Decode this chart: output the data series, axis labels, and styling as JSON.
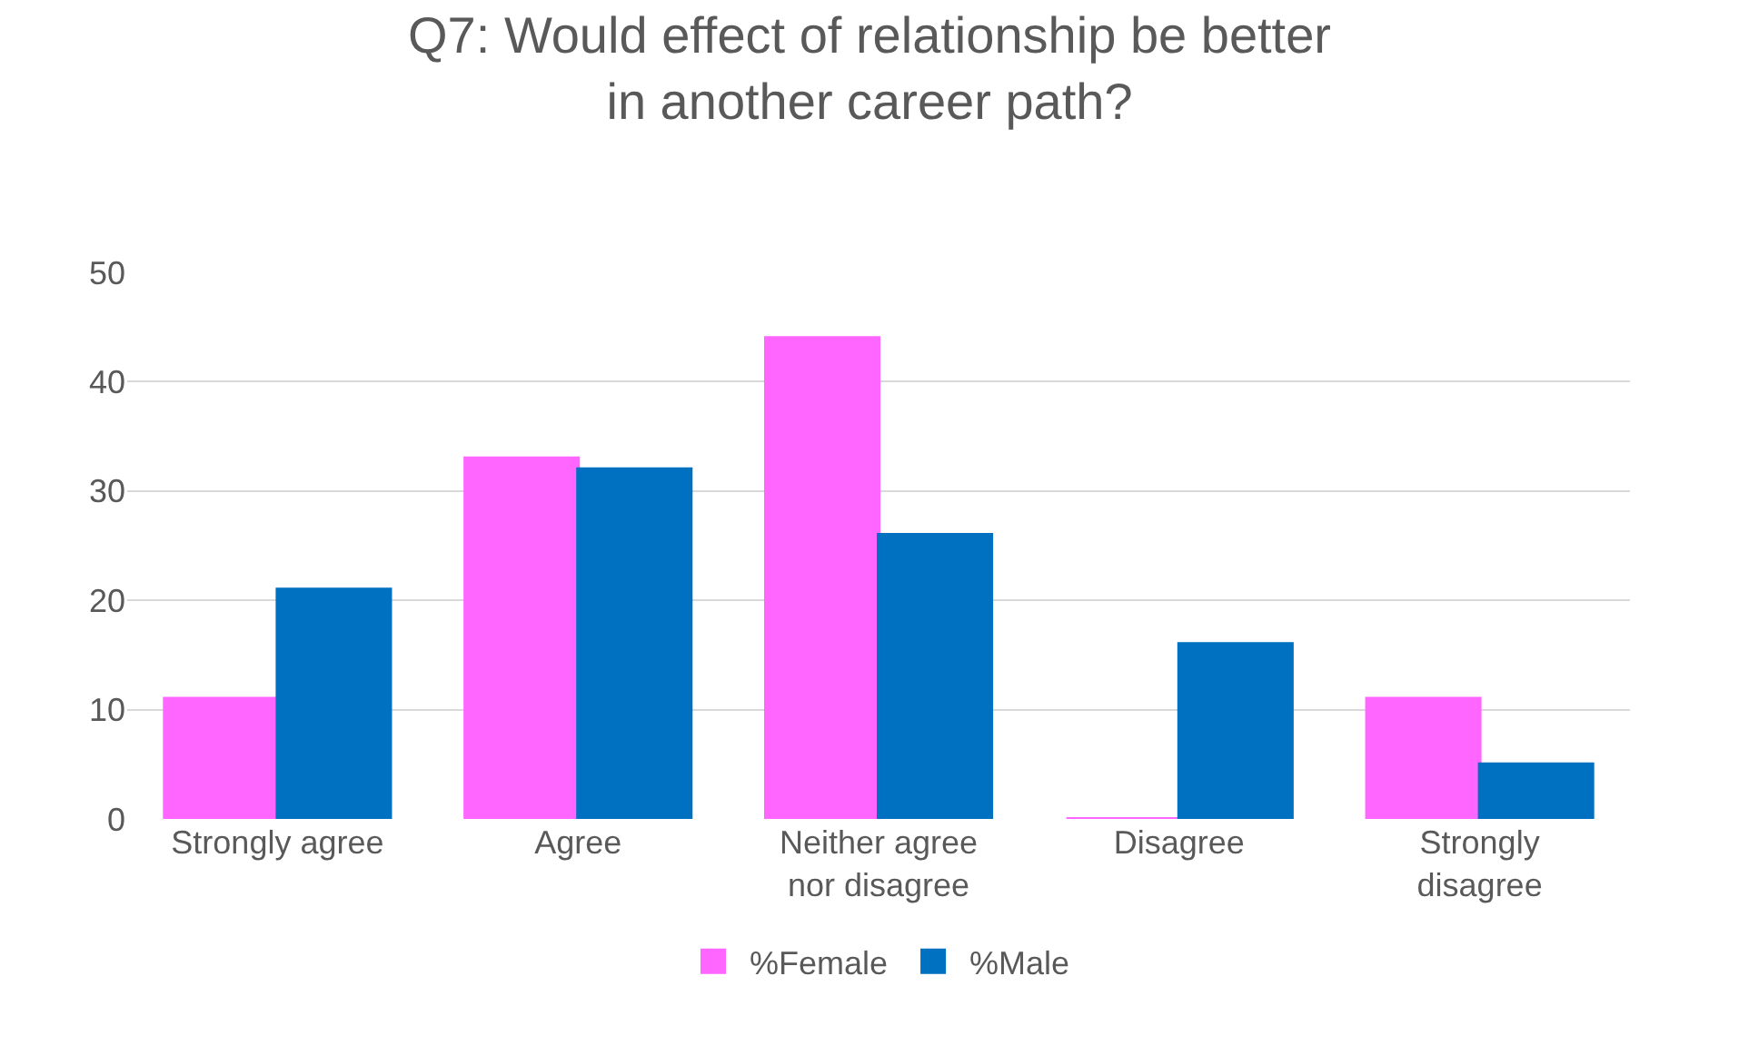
{
  "chart_data": {
    "type": "bar",
    "title": "Q7: Would effect of relationship be better in another career path?",
    "categories": [
      "Strongly agree",
      "Agree",
      "Neither agree nor disagree",
      "Disagree",
      "Strongly disagree"
    ],
    "series": [
      {
        "name": "%Female",
        "color": "#ff66ff",
        "values": [
          11,
          33,
          44,
          0,
          11
        ]
      },
      {
        "name": "%Male",
        "color": "#0070c0",
        "values": [
          21,
          32,
          26,
          16,
          5
        ]
      }
    ],
    "ylim": [
      0,
      50
    ],
    "yticks": [
      0,
      10,
      20,
      30,
      40,
      50
    ],
    "grid": "y",
    "legend": "bottom"
  }
}
